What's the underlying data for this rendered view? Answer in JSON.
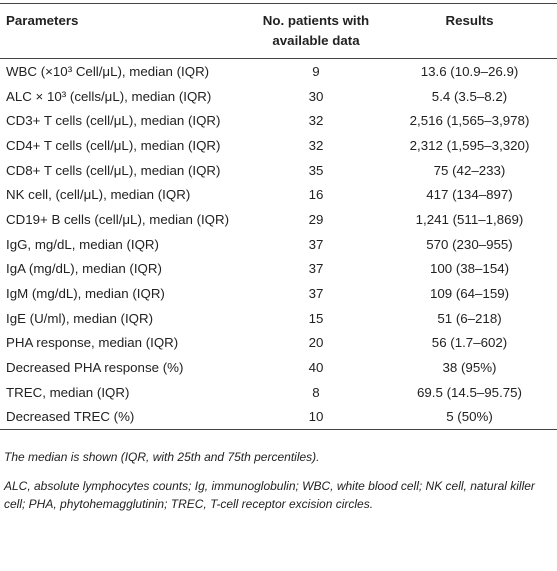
{
  "table": {
    "header": [
      "Parameters",
      "No. patients with available data",
      "Results"
    ],
    "rows": [
      [
        "WBC (×10³ Cell/μL), median (IQR)",
        9,
        "13.6 (10.9–26.9)"
      ],
      [
        "ALC × 10³ (cells/μL), median (IQR)",
        30,
        "5.4 (3.5–8.2)"
      ],
      [
        "CD3+ T cells (cell/μL), median (IQR)",
        32,
        "2,516 (1,565–3,978)"
      ],
      [
        "CD4+ T cells (cell/μL), median (IQR)",
        32,
        "2,312 (1,595–3,320)"
      ],
      [
        "CD8+ T cells (cell/μL), median (IQR)",
        35,
        "75 (42–233)"
      ],
      [
        "NK cell, (cell/μL), median (IQR)",
        16,
        "417 (134–897)"
      ],
      [
        "CD19+ B cells (cell/μL), median (IQR)",
        29,
        "1,241 (511–1,869)"
      ],
      [
        "IgG, mg/dL, median (IQR)",
        37,
        "570 (230–955)"
      ],
      [
        "IgA (mg/dL), median (IQR)",
        37,
        "100 (38–154)"
      ],
      [
        "IgM (mg/dL), median (IQR)",
        37,
        "109 (64–159)"
      ],
      [
        "IgE (U/ml), median (IQR)",
        15,
        "51 (6–218)"
      ],
      [
        "PHA response, median (IQR)",
        20,
        "56 (1.7–602)"
      ],
      [
        "Decreased PHA response (%)",
        40,
        "38 (95%)"
      ],
      [
        "TREC, median (IQR)",
        8,
        "69.5 (14.5–95.75)"
      ],
      [
        "Decreased TREC (%)",
        10,
        "5 (50%)"
      ]
    ],
    "footnotes": [
      "The median is shown (IQR, with 25th and 75th percentiles).",
      "ALC, absolute lymphocytes counts; Ig, immunoglobulin; WBC, white blood cell; NK cell, natural killer cell; PHA, phytohemagglutinin; TREC, T-cell receptor excision circles."
    ]
  }
}
